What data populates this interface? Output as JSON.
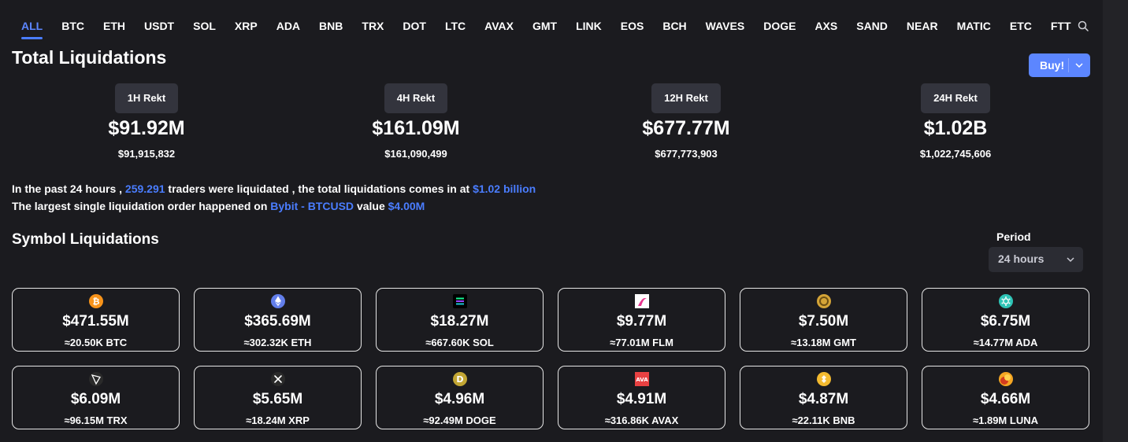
{
  "tabs": [
    "ALL",
    "BTC",
    "ETH",
    "USDT",
    "SOL",
    "XRP",
    "ADA",
    "BNB",
    "TRX",
    "DOT",
    "LTC",
    "AVAX",
    "GMT",
    "LINK",
    "EOS",
    "BCH",
    "WAVES",
    "DOGE",
    "AXS",
    "SAND",
    "NEAR",
    "MATIC",
    "ETC",
    "FTT"
  ],
  "active_tab": "ALL",
  "total": {
    "title": "Total Liquidations",
    "buy_label": "Buy!",
    "rekt": [
      {
        "label": "1H Rekt",
        "big": "$91.92M",
        "exact": "$91,915,832"
      },
      {
        "label": "4H Rekt",
        "big": "$161.09M",
        "exact": "$161,090,499"
      },
      {
        "label": "12H Rekt",
        "big": "$677.77M",
        "exact": "$677,773,903"
      },
      {
        "label": "24H Rekt",
        "big": "$1.02B",
        "exact": "$1,022,745,606"
      }
    ]
  },
  "info": {
    "l1_a": "In the past 24 hours ,",
    "l1_traders": "259.291",
    "l1_b": "traders were liquidated , the total liquidations comes in at",
    "l1_total": "$1.02 billion",
    "l2_a": "The largest single liquidation order happened on",
    "l2_pair": "Bybit - BTCUSD",
    "l2_b": "value",
    "l2_value": "$4.00M"
  },
  "symbols": {
    "title": "Symbol Liquidations",
    "period_label": "Period",
    "period_value": "24 hours",
    "cards": [
      {
        "icon": "btc-icon",
        "amount": "$471.55M",
        "sub": "≈20.50K BTC",
        "color": "#f7931a"
      },
      {
        "icon": "eth-icon",
        "amount": "$365.69M",
        "sub": "≈302.32K ETH",
        "color": "#627eea"
      },
      {
        "icon": "sol-icon",
        "amount": "$18.27M",
        "sub": "≈667.60K SOL",
        "color": "#000000"
      },
      {
        "icon": "flm-icon",
        "amount": "$9.77M",
        "sub": "≈77.01M FLM",
        "color": "#e8368f"
      },
      {
        "icon": "gmt-icon",
        "amount": "$7.50M",
        "sub": "≈13.18M GMT",
        "color": "#d4a437"
      },
      {
        "icon": "ada-icon",
        "amount": "$6.75M",
        "sub": "≈14.77M ADA",
        "color": "#2ec4b6"
      },
      {
        "icon": "trx-icon",
        "amount": "$6.09M",
        "sub": "≈96.15M TRX",
        "color": "#2a2a2a"
      },
      {
        "icon": "xrp-icon",
        "amount": "$5.65M",
        "sub": "≈18.24M XRP",
        "color": "#2a2a2a"
      },
      {
        "icon": "doge-icon",
        "amount": "$4.96M",
        "sub": "≈92.49M DOGE",
        "color": "#c2a633"
      },
      {
        "icon": "avax-icon",
        "amount": "$4.91M",
        "sub": "≈316.86K AVAX",
        "color": "#e84142"
      },
      {
        "icon": "bnb-icon",
        "amount": "$4.87M",
        "sub": "≈22.11K BNB",
        "color": "#f3ba2f"
      },
      {
        "icon": "luna-icon",
        "amount": "$4.66M",
        "sub": "≈1.89M LUNA",
        "color": "#f5a623"
      }
    ]
  }
}
